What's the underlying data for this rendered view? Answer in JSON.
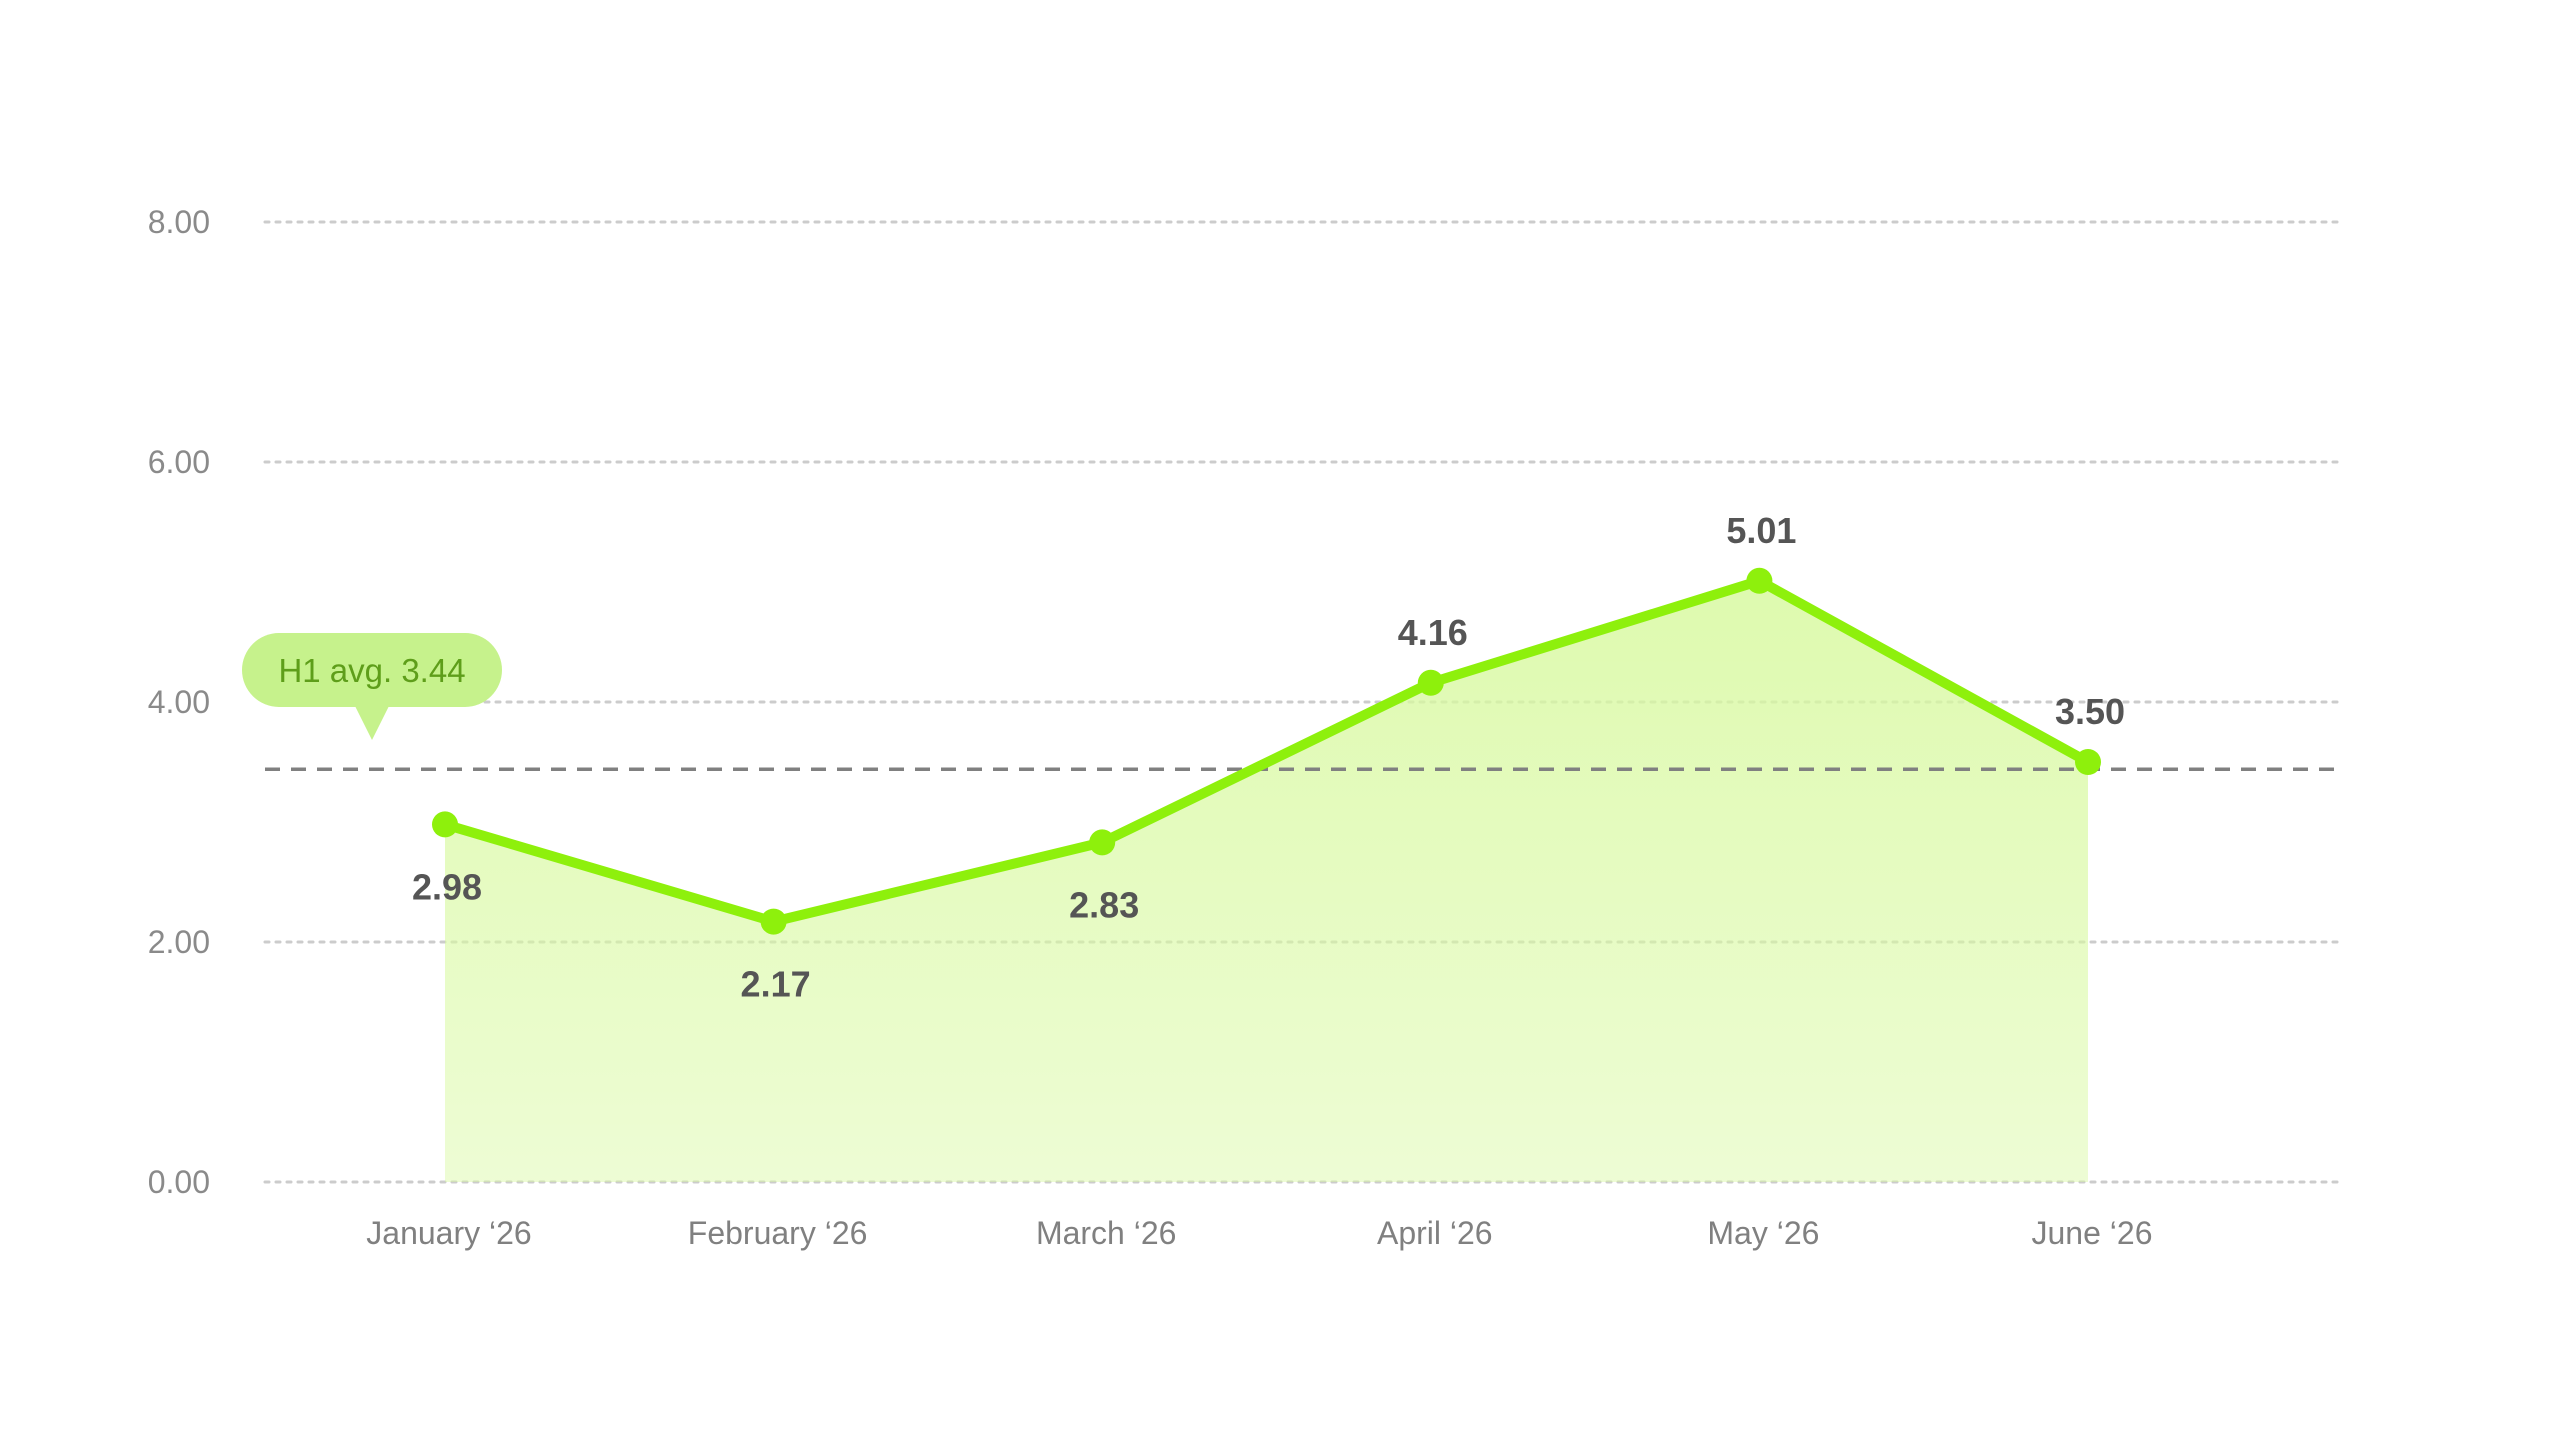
{
  "chart_data": {
    "type": "area",
    "categories": [
      "January ‘26",
      "February ‘26",
      "March ‘26",
      "April ‘26",
      "May ‘26",
      "June ‘26"
    ],
    "values": [
      2.98,
      2.17,
      2.83,
      4.16,
      5.01,
      3.5
    ],
    "data_labels": [
      "2.98",
      "2.17",
      "2.83",
      "4.16",
      "5.01",
      "3.50"
    ],
    "y_ticks": [
      "0.00",
      "2.00",
      "4.00",
      "6.00",
      "8.00"
    ],
    "ylim": [
      0,
      8
    ],
    "grid": true,
    "reference_line": {
      "value": 3.44,
      "label": "H1 avg. 3.44"
    },
    "colors": {
      "line": "#8ef00c",
      "marker": "#8ef00c",
      "area": "#d8f9a0",
      "grid": "#cccccc",
      "reference_line": "#808080",
      "badge": "#c6f28c"
    }
  }
}
